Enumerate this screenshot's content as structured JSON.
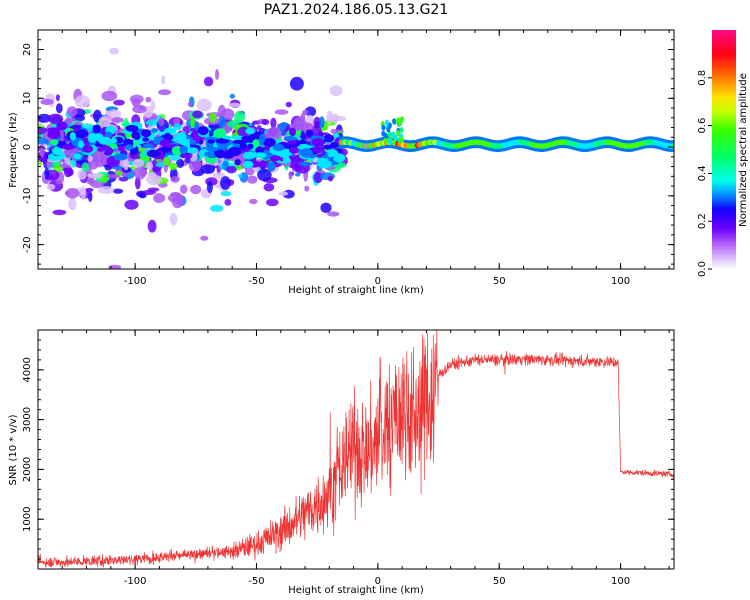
{
  "title": "PAZ1.2024.186.05.13.G21",
  "chart_data": [
    {
      "type": "heatmap",
      "xlabel": "Height of straight line (km)",
      "ylabel": "Frequency (Hz)",
      "xlim": [
        -140,
        122
      ],
      "ylim": [
        -25,
        24
      ],
      "xticks": [
        -100,
        -50,
        0,
        50,
        100
      ],
      "yticks": [
        -20,
        -10,
        0,
        10,
        20
      ],
      "colorbar": {
        "label": "Normalized spectral amplitude",
        "range": [
          0.0,
          1.0
        ],
        "ticks": [
          "0.0",
          "0.2",
          "0.4",
          "0.6",
          "0.8"
        ],
        "colormap": "gist_rainbow_r (white at low amplitude)"
      },
      "features": [
        {
          "x_range": [
            -140,
            -20
          ],
          "description_value": "diffuse scatter, amplitude 0.1-0.5, spread -25 to 24 Hz"
        },
        {
          "x_range": [
            -15,
            122
          ],
          "description_value": "narrow band near 0-1 Hz, amplitude 0.3-1.0"
        }
      ]
    },
    {
      "type": "line",
      "xlabel": "Height of straight line (km)",
      "ylabel": "SNR (10 * v/v)",
      "xlim": [
        -140,
        122
      ],
      "ylim": [
        0,
        4800
      ],
      "xticks": [
        -100,
        -50,
        0,
        50,
        100
      ],
      "yticks": [
        1000,
        2000,
        3000,
        4000
      ],
      "color": "#ee3333",
      "series": [
        {
          "x": [
            -140,
            -120,
            -100,
            -80,
            -60,
            -50,
            -40,
            -30,
            -20,
            -15,
            -10,
            -5,
            0,
            5,
            10,
            15,
            20,
            25,
            30,
            40,
            50,
            60,
            70,
            80,
            90,
            99,
            100,
            110,
            122
          ],
          "y": [
            130,
            150,
            200,
            280,
            350,
            500,
            750,
            1100,
            1500,
            2000,
            2500,
            2300,
            2600,
            2900,
            3200,
            3000,
            3400,
            3900,
            4100,
            4200,
            4200,
            4220,
            4200,
            4180,
            4170,
            4150,
            1950,
            1930,
            1900
          ]
        }
      ]
    }
  ]
}
